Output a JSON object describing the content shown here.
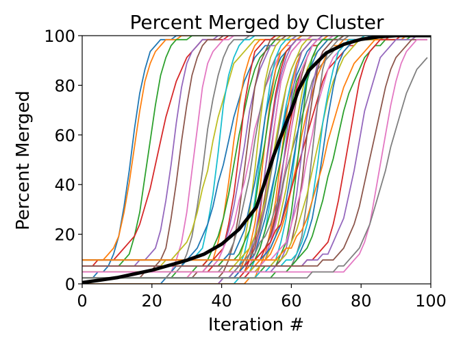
{
  "chart_data": {
    "type": "line",
    "title": "Percent Merged by Cluster",
    "xlabel": "Iteration #",
    "ylabel": "Percent Merged",
    "xlim": [
      0,
      100
    ],
    "ylim": [
      0,
      100
    ],
    "xticks": [
      0,
      20,
      40,
      60,
      80,
      100
    ],
    "yticks": [
      0,
      20,
      40,
      60,
      80,
      100
    ],
    "grid": false,
    "legend": "none",
    "palette": [
      "#1f77b4",
      "#ff7f0e",
      "#2ca02c",
      "#d62728",
      "#9467bd",
      "#8c564b",
      "#e377c2",
      "#7f7f7f",
      "#bcbd22",
      "#17becf"
    ],
    "cluster_midpoints": [
      14,
      15,
      19,
      22,
      26,
      28,
      32,
      35,
      37,
      39,
      41,
      43,
      44,
      45,
      46,
      47,
      48,
      49,
      50,
      51,
      51,
      52,
      52,
      53,
      53,
      54,
      54,
      55,
      55,
      56,
      56,
      57,
      57,
      58,
      58,
      59,
      59,
      60,
      60,
      61,
      61,
      62,
      62,
      63,
      63,
      64,
      65,
      66,
      67,
      68,
      69,
      70,
      72,
      76,
      79,
      83,
      86,
      88
    ],
    "mean_series": {
      "name": "",
      "color": "#000000",
      "x": [
        0,
        5,
        10,
        15,
        20,
        25,
        30,
        35,
        40,
        45,
        50,
        55,
        58,
        60,
        62,
        65,
        70,
        75,
        80,
        85,
        90,
        95,
        100
      ],
      "y": [
        0.5,
        1.5,
        2.5,
        4,
        5.5,
        7.5,
        9.5,
        12,
        16,
        22,
        31,
        52,
        63,
        70,
        78,
        86,
        93,
        96.5,
        98.5,
        99.5,
        100,
        100,
        100
      ]
    }
  }
}
